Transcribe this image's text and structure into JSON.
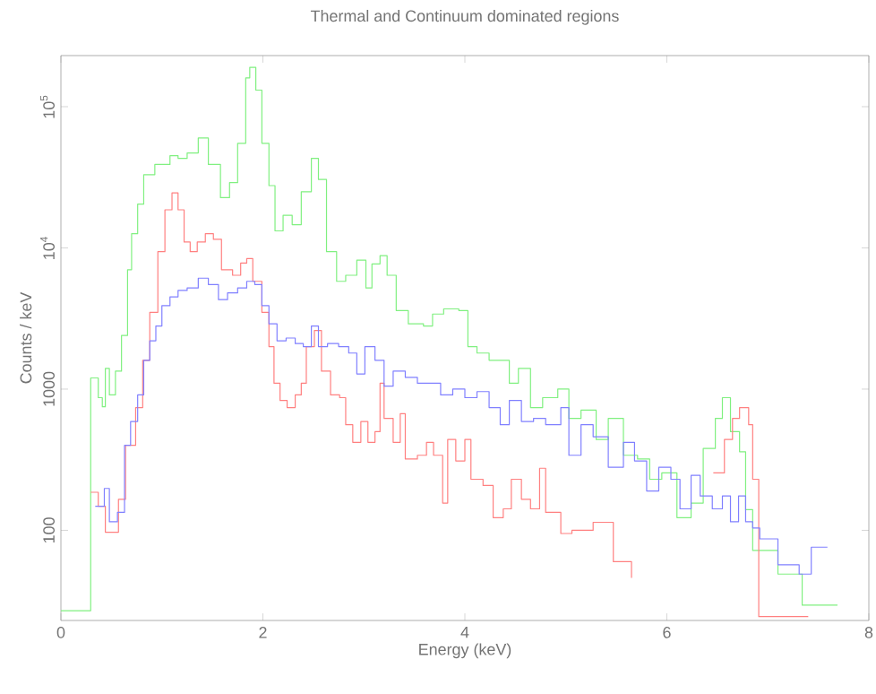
{
  "chart_data": {
    "type": "step",
    "title": "Thermal and Continuum dominated regions",
    "xlabel": "Energy (keV)",
    "ylabel": "Counts / keV",
    "log": "y",
    "grid": false,
    "xlim": [
      0,
      8
    ],
    "ylim": [
      23,
      230000
    ],
    "xticks": [
      0,
      2,
      4,
      6,
      8
    ],
    "yticks": [
      100,
      1000,
      {
        "value": 10000,
        "label": "10$^{4}$"
      },
      {
        "value": 100000,
        "label": "10$^{5}$"
      }
    ],
    "series": [
      {
        "color": "#80f080",
        "x": [
          0,
          0.295,
          0.37,
          0.41,
          0.44,
          0.48,
          0.54,
          0.6,
          0.66,
          0.7,
          0.76,
          0.82,
          0.93,
          1.08,
          1.16,
          1.25,
          1.36,
          1.46,
          1.58,
          1.67,
          1.75,
          1.83,
          1.87,
          1.93,
          1.99,
          2.06,
          2.12,
          2.2,
          2.29,
          2.38,
          2.48,
          2.55,
          2.63,
          2.73,
          2.82,
          2.93,
          3.02,
          3.08,
          3.16,
          3.23,
          3.32,
          3.44,
          3.59,
          3.68,
          3.79,
          3.94,
          4.03,
          4.12,
          4.24,
          4.35,
          4.44,
          4.53,
          4.65,
          4.77,
          4.92,
          5.03,
          5.15,
          5.3,
          5.42,
          5.57,
          5.71,
          5.83,
          5.95,
          6.1,
          6.24,
          6.36,
          6.48,
          6.55,
          6.63,
          6.72,
          6.78,
          6.85,
          6.98,
          7.1,
          7.34,
          7.69
        ],
        "values": [
          27,
          1200,
          870,
          750,
          1400,
          910,
          1340,
          2400,
          7000,
          12600,
          20400,
          33000,
          39000,
          45000,
          43000,
          47000,
          60000,
          39000,
          22700,
          29000,
          55000,
          160000,
          190000,
          131000,
          55000,
          27600,
          13200,
          17000,
          14600,
          25000,
          43000,
          30500,
          9400,
          5800,
          6400,
          8200,
          5200,
          7700,
          8800,
          6400,
          3600,
          2900,
          2800,
          3400,
          3700,
          3600,
          2000,
          1800,
          1600,
          1600,
          1100,
          1400,
          740,
          870,
          1000,
          620,
          710,
          440,
          620,
          340,
          320,
          230,
          255,
          123,
          156,
          380,
          620,
          870,
          500,
          360,
          140,
          72,
          72,
          49,
          29.5,
          29.5
        ]
      },
      {
        "color": "#ff8080",
        "x": [
          0.295,
          0.37,
          0.44,
          0.57,
          0.64,
          0.74,
          0.81,
          0.88,
          0.96,
          1.03,
          1.1,
          1.16,
          1.22,
          1.28,
          1.35,
          1.43,
          1.51,
          1.59,
          1.7,
          1.78,
          1.84,
          1.9,
          1.99,
          2.06,
          2.11,
          2.17,
          2.24,
          2.32,
          2.38,
          2.43,
          2.51,
          2.58,
          2.67,
          2.76,
          2.82,
          2.89,
          2.97,
          3.04,
          3.11,
          3.16,
          3.2,
          3.29,
          3.36,
          3.41,
          3.53,
          3.62,
          3.69,
          3.78,
          3.83,
          3.91,
          4.0,
          4.06,
          4.18,
          4.28,
          4.38,
          4.46,
          4.56,
          4.65,
          4.74,
          4.8,
          4.95,
          5.06,
          5.27,
          5.47,
          5.65,
          5.88,
          6.46,
          6.57,
          6.65,
          6.72,
          6.81,
          6.85,
          6.91,
          7.4
        ],
        "values": [
          186,
          148,
          97,
          166,
          400,
          740,
          1600,
          3500,
          9400,
          18600,
          24500,
          18600,
          11000,
          9400,
          11000,
          12600,
          11500,
          7000,
          6400,
          7800,
          8400,
          5800,
          3500,
          2000,
          1100,
          830,
          740,
          910,
          1100,
          2000,
          2600,
          1340,
          910,
          870,
          560,
          420,
          590,
          420,
          500,
          1100,
          620,
          420,
          670,
          320,
          340,
          420,
          340,
          156,
          440,
          310,
          440,
          230,
          208,
          123,
          142,
          230,
          166,
          142,
          275,
          134,
          95,
          100,
          114,
          60,
          46,
          null,
          255,
          440,
          620,
          740,
          560,
          230,
          24.5,
          24.5
        ]
      },
      {
        "color": "#8080ff",
        "x": [
          0.34,
          0.43,
          0.48,
          0.56,
          0.63,
          0.69,
          0.76,
          0.82,
          0.88,
          0.94,
          1.0,
          1.08,
          1.16,
          1.25,
          1.36,
          1.46,
          1.56,
          1.65,
          1.75,
          1.84,
          1.92,
          1.99,
          2.06,
          2.14,
          2.23,
          2.32,
          2.4,
          2.48,
          2.55,
          2.64,
          2.75,
          2.85,
          2.93,
          3.01,
          3.11,
          3.2,
          3.29,
          3.41,
          3.53,
          3.65,
          3.76,
          3.88,
          4.0,
          4.12,
          4.24,
          4.35,
          4.44,
          4.56,
          4.68,
          4.8,
          4.95,
          5.03,
          5.15,
          5.27,
          5.42,
          5.57,
          5.68,
          5.8,
          5.92,
          6.04,
          6.13,
          6.24,
          6.33,
          6.45,
          6.55,
          6.63,
          6.71,
          6.78,
          6.85,
          6.92,
          7.1,
          7.31,
          7.43,
          7.59
        ],
        "values": [
          148,
          198,
          115,
          134,
          400,
          590,
          910,
          1600,
          2200,
          2800,
          3900,
          4500,
          5000,
          5200,
          6100,
          5500,
          4300,
          4800,
          5200,
          5800,
          5500,
          3900,
          2900,
          2200,
          2300,
          2100,
          2000,
          2800,
          2000,
          2100,
          2000,
          1800,
          1280,
          2000,
          1600,
          1050,
          1340,
          1210,
          1100,
          1100,
          910,
          1000,
          870,
          960,
          740,
          560,
          830,
          590,
          620,
          560,
          740,
          340,
          560,
          460,
          280,
          420,
          310,
          190,
          280,
          230,
          142,
          245,
          175,
          142,
          175,
          115,
          175,
          115,
          104,
          87,
          57,
          49,
          76,
          76
        ]
      }
    ]
  }
}
